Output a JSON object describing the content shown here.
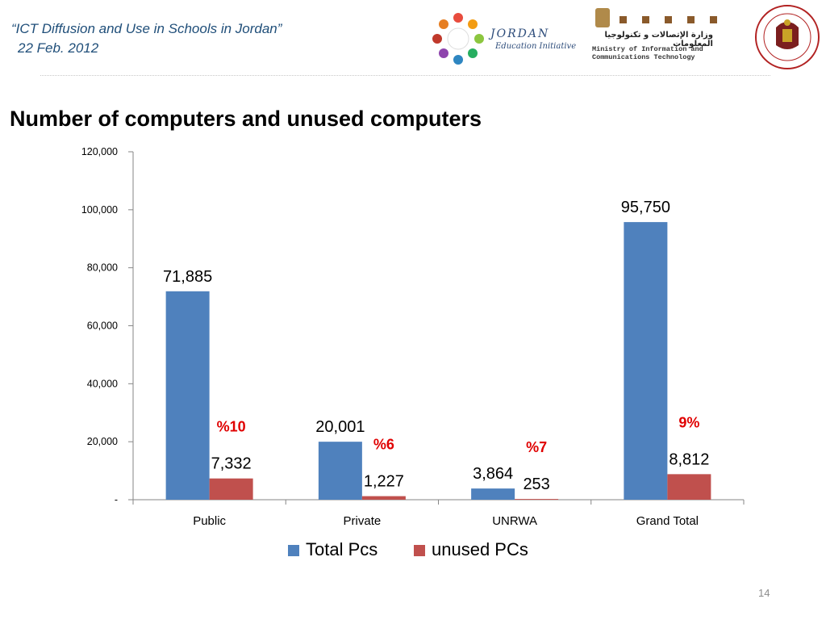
{
  "header": {
    "presentation_title": "“ICT  Diffusion and Use in Schools in Jordan”",
    "date": "22 Feb. 2012"
  },
  "logos": {
    "jordan_word": "JORDAN",
    "jordan_sub": "Education Initiative",
    "ministry_ar": "وزارة الإتصالات و تكنولوجيا المعلومات",
    "ministry_en_1": "Ministry of Information and",
    "ministry_en_2": "Communications Technology"
  },
  "slide": {
    "title": "Number of computers and unused computers",
    "page_number": "14"
  },
  "colors": {
    "total": "#4f81bd",
    "unused": "#c0504d",
    "pct": "#e00000",
    "title_blue": "#1f4e79"
  },
  "chart_data": {
    "type": "bar",
    "categories": [
      "Public",
      "Private",
      "UNRWA",
      "Grand Total"
    ],
    "series": [
      {
        "name": "Total Pcs",
        "values": [
          71885,
          20001,
          3864,
          95750
        ],
        "labels": [
          "71,885",
          "20,001",
          "3,864",
          "95,750"
        ]
      },
      {
        "name": "unused PCs",
        "values": [
          7332,
          1227,
          253,
          8812
        ],
        "labels": [
          "7,332",
          "1,227",
          "253",
          "8,812"
        ]
      }
    ],
    "percent_labels": [
      "%10",
      "%6",
      "%7",
      "9%"
    ],
    "ylim": [
      0,
      120000
    ],
    "yticks": [
      0,
      20000,
      40000,
      60000,
      80000,
      100000,
      120000
    ],
    "ytick_labels": [
      "-",
      "20,000",
      "40,000",
      "60,000",
      "80,000",
      "100,000",
      "120,000"
    ],
    "legend_position": "bottom"
  }
}
